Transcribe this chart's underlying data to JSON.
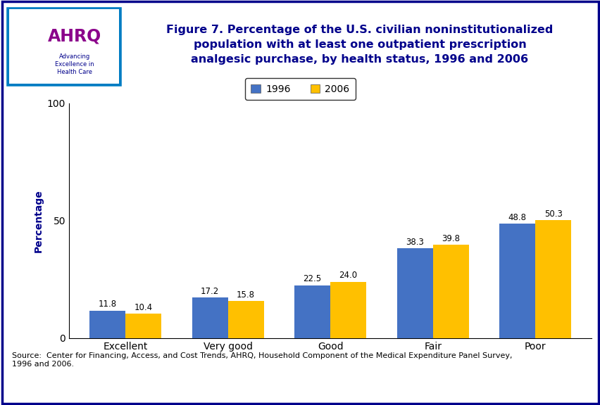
{
  "categories": [
    "Excellent",
    "Very good",
    "Good",
    "Fair",
    "Poor"
  ],
  "values_1996": [
    11.8,
    17.2,
    22.5,
    38.3,
    48.8
  ],
  "values_2006": [
    10.4,
    15.8,
    24.0,
    39.8,
    50.3
  ],
  "bar_color_1996": "#4472C4",
  "bar_color_2006": "#FFC000",
  "bar_width": 0.35,
  "ylim": [
    0,
    100
  ],
  "yticks": [
    0,
    50,
    100
  ],
  "ylabel": "Percentage",
  "legend_labels": [
    "1996",
    "2006"
  ],
  "title_line1": "Figure 7. Percentage of the U.S. civilian noninstitutionalized",
  "title_line2": "population with at least one outpatient prescription",
  "title_line3": "analgesic purchase, by health status, 1996 and 2006",
  "source_text": "Source:  Center for Financing, Access, and Cost Trends, AHRQ, Household Component of the Medical Expenditure Panel Survey,\n1996 and 2006.",
  "background_color": "#FFFFFF",
  "title_color": "#00008B",
  "ylabel_color": "#00008B",
  "bar_label_fontsize": 8.5,
  "axis_label_fontsize": 10,
  "title_fontsize": 11.5,
  "legend_fontsize": 10,
  "source_fontsize": 8,
  "border_color": "#00008B",
  "separator_color": "#00008B",
  "header_logo_bg": "#007DC3",
  "logo_text": "AHRQ",
  "logo_subtext": "Advancing\nExcellence in\nHealth Care"
}
